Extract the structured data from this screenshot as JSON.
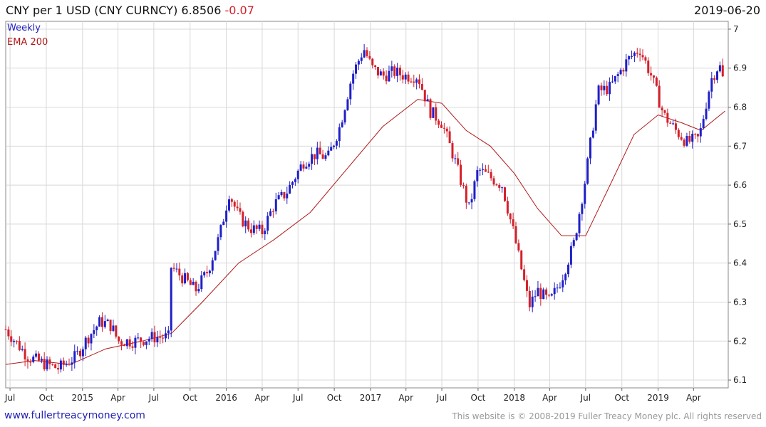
{
  "header": {
    "title": "CNY per 1 USD (CNY CURNCY) 6.8506",
    "change": "-0.07",
    "date": "2019-06-20"
  },
  "legend": {
    "series1": "Weekly",
    "series2": "EMA 200"
  },
  "footer": {
    "site": "www.fullertreacymoney.com",
    "copyright": "This website is © 2008-2019 Fuller Treacy Money plc. All rights reserved"
  },
  "colors": {
    "up": "#1f1fc8",
    "down": "#d4202b",
    "ema": "#b01818",
    "grid": "#d8d8d8"
  },
  "chart_data": {
    "type": "line",
    "ylim": [
      6.08,
      7.02
    ],
    "y_ticks": [
      6.1,
      6.2,
      6.3,
      6.4,
      6.5,
      6.6,
      6.7,
      6.8,
      6.9,
      7
    ],
    "y_tick_labels": [
      "6.1",
      "6.2",
      "6.3",
      "6.4",
      "6.5",
      "6.6",
      "6.7",
      "6.8",
      "6.9",
      "7"
    ],
    "x_tick_labels": [
      "Jul",
      "Oct",
      "2015",
      "Apr",
      "Jul",
      "Oct",
      "2016",
      "Apr",
      "Jul",
      "Oct",
      "2017",
      "Apr",
      "Jul",
      "Oct",
      "2018",
      "Apr",
      "Jul",
      "Oct",
      "2019",
      "Apr"
    ],
    "x_tick_dates": [
      "2014-07-01",
      "2014-10-01",
      "2015-01-01",
      "2015-04-01",
      "2015-07-01",
      "2015-10-01",
      "2016-01-01",
      "2016-04-01",
      "2016-07-01",
      "2016-10-01",
      "2017-01-01",
      "2017-04-01",
      "2017-07-01",
      "2017-10-01",
      "2018-01-01",
      "2018-04-01",
      "2018-07-01",
      "2018-10-01",
      "2019-01-01",
      "2019-04-01"
    ],
    "xlim": [
      "2014-06-20",
      "2019-06-28"
    ],
    "series": [
      {
        "name": "Weekly",
        "x": [
          "2014-06-20",
          "2014-08-15",
          "2014-10-01",
          "2014-11-01",
          "2014-12-15",
          "2015-01-15",
          "2015-02-15",
          "2015-03-15",
          "2015-04-01",
          "2015-05-15",
          "2015-07-01",
          "2015-08-07",
          "2015-08-14",
          "2015-09-15",
          "2015-10-15",
          "2015-11-15",
          "2015-12-15",
          "2016-01-08",
          "2016-02-01",
          "2016-03-01",
          "2016-04-01",
          "2016-05-01",
          "2016-06-01",
          "2016-07-15",
          "2016-08-15",
          "2016-09-15",
          "2016-10-15",
          "2016-11-15",
          "2016-12-15",
          "2017-01-05",
          "2017-02-01",
          "2017-03-01",
          "2017-04-01",
          "2017-05-01",
          "2017-06-01",
          "2017-07-01",
          "2017-08-01",
          "2017-09-08",
          "2017-10-01",
          "2017-11-01",
          "2017-12-01",
          "2018-01-01",
          "2018-02-08",
          "2018-03-01",
          "2018-04-01",
          "2018-05-01",
          "2018-06-01",
          "2018-07-01",
          "2018-08-01",
          "2018-09-01",
          "2018-10-15",
          "2018-11-15",
          "2018-12-15",
          "2019-01-15",
          "2019-02-15",
          "2019-03-15",
          "2019-04-15",
          "2019-05-15",
          "2019-06-05",
          "2019-06-20"
        ],
        "values": [
          6.23,
          6.16,
          6.14,
          6.13,
          6.16,
          6.21,
          6.25,
          6.24,
          6.2,
          6.2,
          6.21,
          6.21,
          6.39,
          6.36,
          6.33,
          6.38,
          6.47,
          6.58,
          6.52,
          6.49,
          6.48,
          6.55,
          6.58,
          6.66,
          6.68,
          6.67,
          6.75,
          6.88,
          6.95,
          6.9,
          6.88,
          6.89,
          6.88,
          6.88,
          6.79,
          6.76,
          6.67,
          6.54,
          6.64,
          6.62,
          6.6,
          6.47,
          6.29,
          6.33,
          6.3,
          6.36,
          6.45,
          6.62,
          6.84,
          6.85,
          6.92,
          6.95,
          6.88,
          6.78,
          6.74,
          6.71,
          6.72,
          6.87,
          6.91,
          6.85
        ]
      },
      {
        "name": "EMA 200",
        "x": [
          "2014-06-20",
          "2014-09-01",
          "2014-12-01",
          "2015-03-01",
          "2015-06-01",
          "2015-08-15",
          "2015-11-01",
          "2016-02-01",
          "2016-05-01",
          "2016-08-01",
          "2016-11-01",
          "2017-02-01",
          "2017-05-01",
          "2017-07-01",
          "2017-09-01",
          "2017-11-01",
          "2018-01-01",
          "2018-03-01",
          "2018-05-01",
          "2018-07-01",
          "2018-09-01",
          "2018-11-01",
          "2019-01-01",
          "2019-03-01",
          "2019-04-20",
          "2019-06-20"
        ],
        "values": [
          6.14,
          6.15,
          6.14,
          6.18,
          6.2,
          6.22,
          6.3,
          6.4,
          6.46,
          6.53,
          6.64,
          6.75,
          6.82,
          6.81,
          6.74,
          6.7,
          6.63,
          6.54,
          6.47,
          6.47,
          6.6,
          6.73,
          6.78,
          6.76,
          6.74,
          6.79
        ]
      }
    ]
  }
}
